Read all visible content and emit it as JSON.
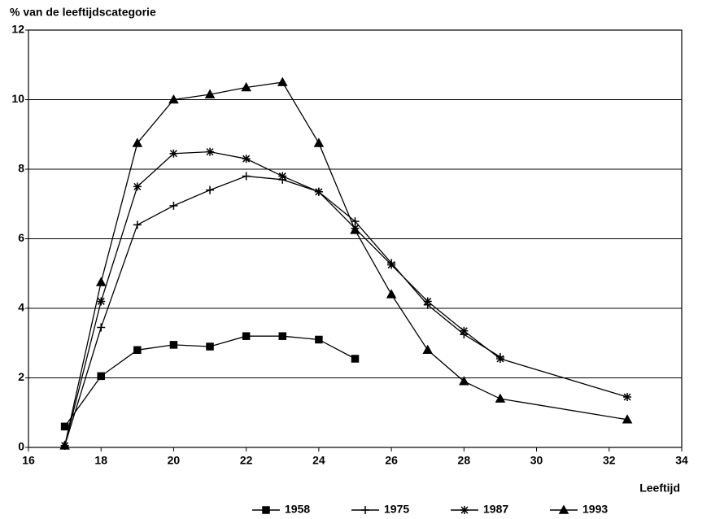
{
  "chart_data": {
    "type": "line",
    "y_label": "% van de leeftijdscategorie",
    "x_label": "Leeftijd",
    "xlim": [
      16,
      34
    ],
    "xticks": [
      16,
      18,
      20,
      22,
      24,
      26,
      28,
      30,
      32,
      34
    ],
    "ylim": [
      0,
      12
    ],
    "yticks": [
      0,
      2,
      4,
      6,
      8,
      10,
      12
    ],
    "grid": true,
    "legend": "bottom",
    "series": [
      {
        "name": "1958",
        "color": "#000000",
        "marker": "square",
        "x": [
          17,
          18,
          19,
          20,
          21,
          22,
          23,
          24,
          25
        ],
        "values": [
          0.6,
          2.05,
          2.8,
          2.95,
          2.9,
          3.2,
          3.2,
          3.1,
          2.55
        ]
      },
      {
        "name": "1975",
        "color": "#000000",
        "marker": "plus",
        "x": [
          17,
          18,
          19,
          20,
          21,
          22,
          23,
          24,
          25,
          26,
          27,
          28,
          29
        ],
        "values": [
          0.05,
          3.45,
          6.4,
          6.95,
          7.4,
          7.8,
          7.7,
          7.35,
          6.5,
          5.3,
          4.1,
          3.25,
          2.6
        ]
      },
      {
        "name": "1987",
        "color": "#000000",
        "marker": "star",
        "x": [
          17,
          18,
          19,
          20,
          21,
          22,
          23,
          24,
          25,
          26,
          27,
          28,
          29,
          32.5
        ],
        "values": [
          0.05,
          4.2,
          7.5,
          8.45,
          8.5,
          8.3,
          7.8,
          7.35,
          6.3,
          5.25,
          4.2,
          3.35,
          2.55,
          1.45
        ]
      },
      {
        "name": "1993",
        "color": "#000000",
        "marker": "triangle",
        "x": [
          17,
          18,
          19,
          20,
          21,
          22,
          23,
          24,
          25,
          26,
          27,
          28,
          29,
          32.5
        ],
        "values": [
          0.05,
          4.75,
          8.75,
          10.0,
          10.15,
          10.35,
          10.5,
          8.75,
          6.25,
          4.4,
          2.8,
          1.9,
          1.4,
          0.8
        ]
      }
    ]
  }
}
